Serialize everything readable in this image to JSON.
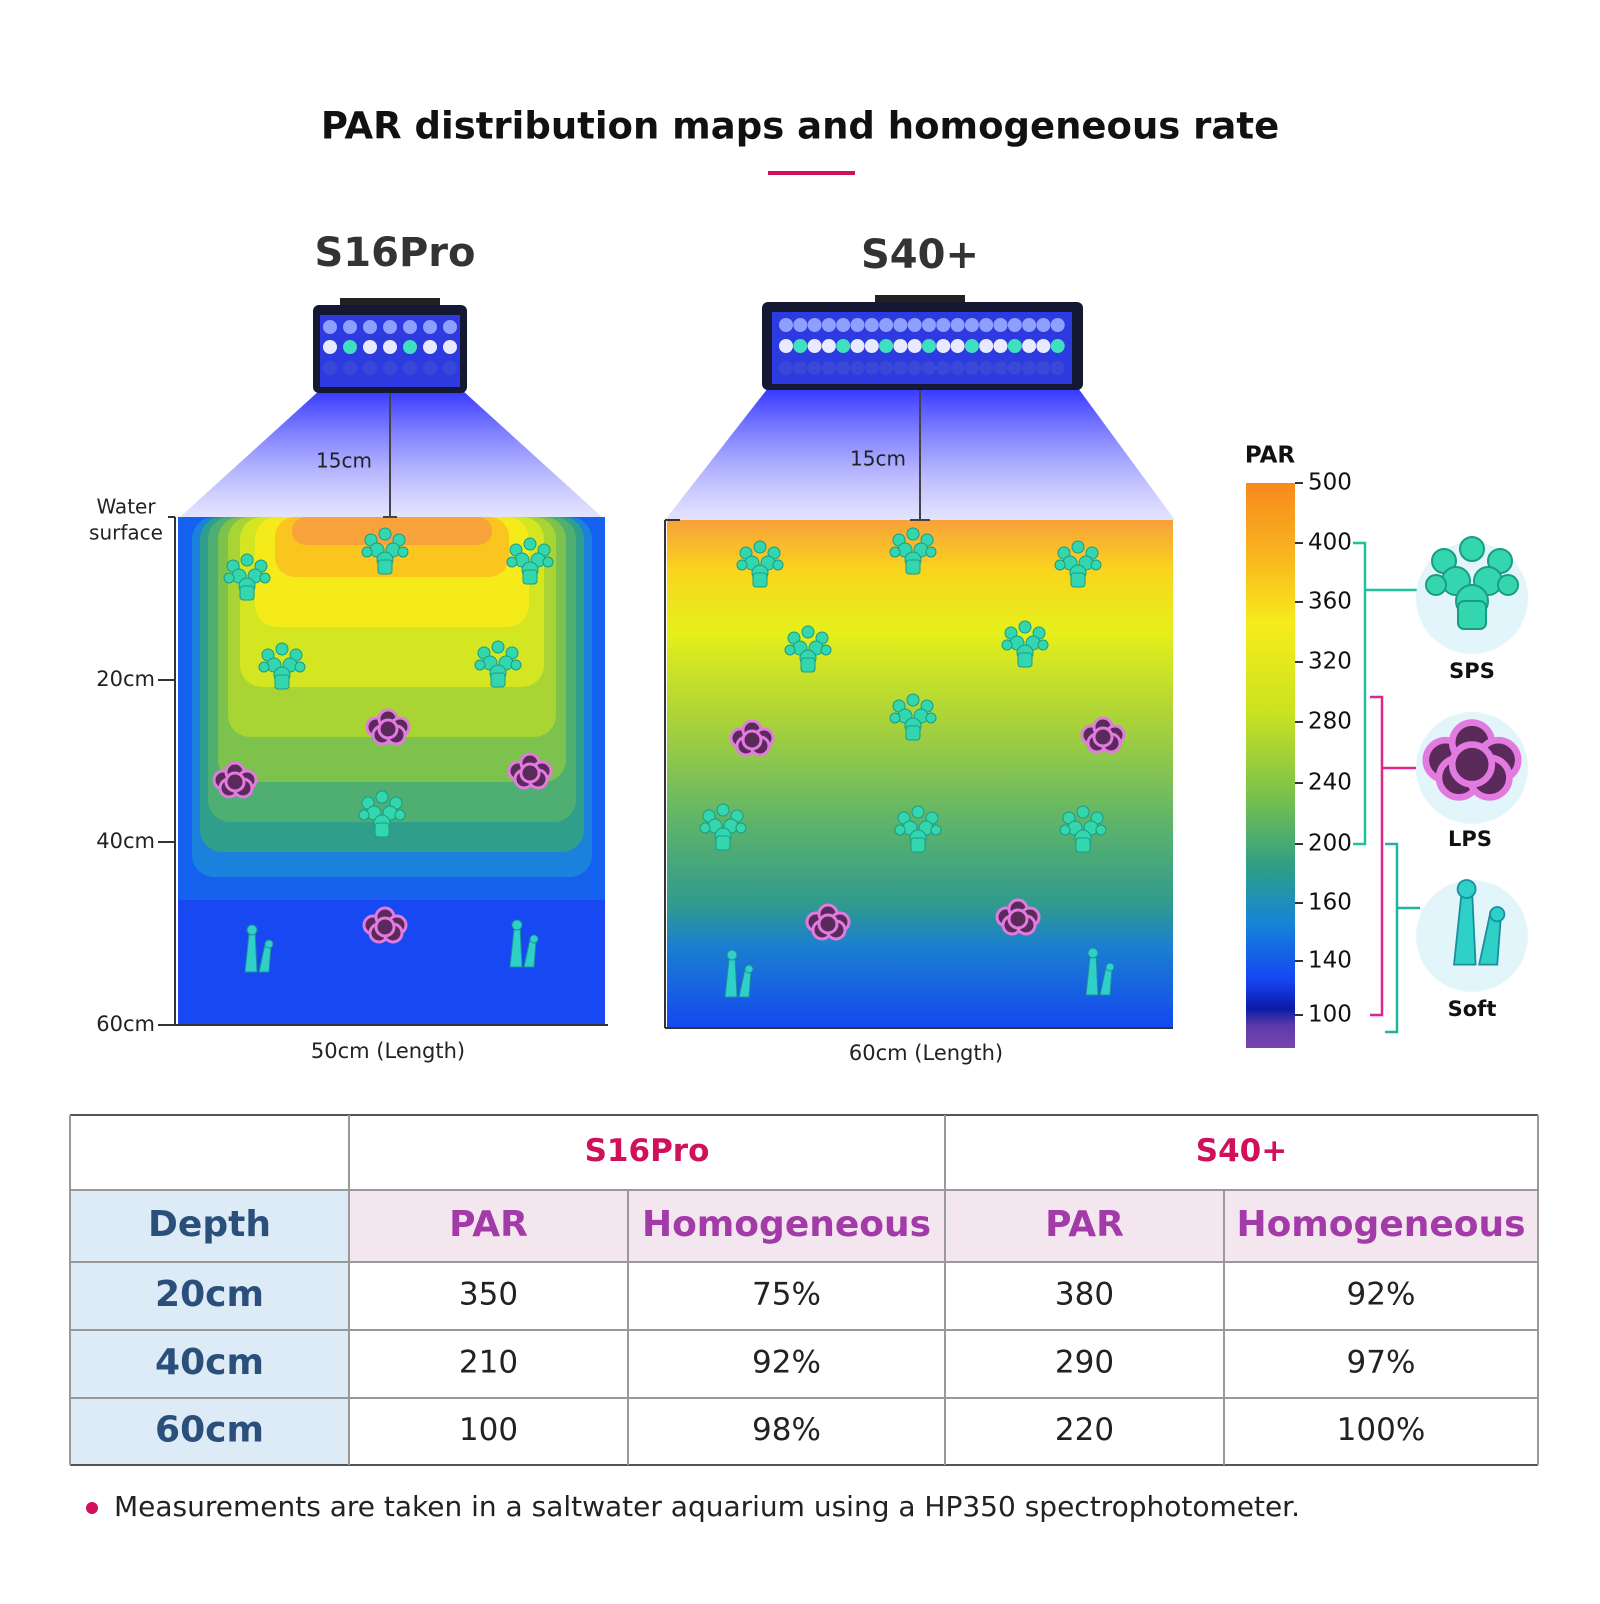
{
  "title": "PAR distribution maps and homogeneous rate",
  "maps": [
    {
      "name": "S16Pro",
      "distance": "15cm",
      "length": "50cm (Length)"
    },
    {
      "name": "S40+",
      "distance": "15cm",
      "length": "60cm (Length)"
    }
  ],
  "depth_axis": {
    "surface": [
      "Water",
      "surface"
    ],
    "labels": [
      "20cm",
      "40cm",
      "60cm"
    ]
  },
  "colorbar": {
    "title": "PAR",
    "ticks": [
      "500",
      "400",
      "360",
      "320",
      "280",
      "240",
      "200",
      "160",
      "140",
      "100"
    ]
  },
  "corals": [
    "SPS",
    "LPS",
    "Soft"
  ],
  "table": {
    "groups": [
      "S16Pro",
      "S40+"
    ],
    "header": [
      "Depth",
      "PAR",
      "Homogeneous",
      "PAR",
      "Homogeneous"
    ],
    "rows": [
      [
        "20cm",
        "350",
        "75%",
        "380",
        "92%"
      ],
      [
        "40cm",
        "210",
        "92%",
        "290",
        "97%"
      ],
      [
        "60cm",
        "100",
        "98%",
        "220",
        "100%"
      ]
    ]
  },
  "note": "Measurements are taken in a saltwater aquarium using a HP350 spectrophotometer."
}
